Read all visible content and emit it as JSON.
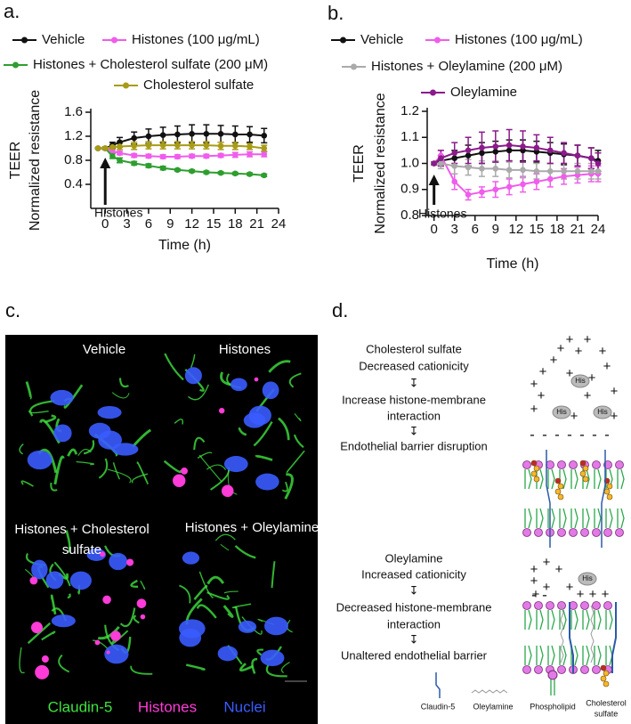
{
  "panel_labels": {
    "a": "a.",
    "b": "b.",
    "c": "c.",
    "d": "d."
  },
  "chart_data": [
    {
      "type": "line",
      "ylabel": [
        "TEER",
        "Normalized resistance"
      ],
      "xlabel": "Time (h)",
      "annotation": "Histones",
      "annotation_x": 0,
      "x": [
        -1,
        0,
        1,
        2,
        4,
        6,
        8,
        10,
        12,
        14,
        16,
        18,
        20,
        22
      ],
      "xlim": [
        -2,
        24
      ],
      "xticks": [
        0,
        3,
        6,
        9,
        12,
        15,
        18,
        21,
        24
      ],
      "ylim": [
        0,
        1.6
      ],
      "yticks": [
        0.4,
        0.8,
        1.2,
        1.6
      ],
      "series": [
        {
          "name": "Vehicle",
          "color": "#111111",
          "values": [
            1.0,
            1.0,
            1.05,
            1.1,
            1.17,
            1.2,
            1.22,
            1.23,
            1.24,
            1.24,
            1.24,
            1.23,
            1.23,
            1.21
          ],
          "errors": [
            0.01,
            0.02,
            0.05,
            0.08,
            0.1,
            0.12,
            0.13,
            0.14,
            0.15,
            0.15,
            0.14,
            0.14,
            0.13,
            0.12
          ]
        },
        {
          "name": "Histones (100 μg/mL)",
          "color": "#f05cec",
          "values": [
            1.0,
            1.0,
            0.95,
            0.92,
            0.88,
            0.87,
            0.86,
            0.86,
            0.87,
            0.87,
            0.88,
            0.89,
            0.9,
            0.9
          ],
          "errors": [
            0.01,
            0.02,
            0.03,
            0.03,
            0.03,
            0.03,
            0.03,
            0.03,
            0.03,
            0.03,
            0.03,
            0.04,
            0.04,
            0.04
          ]
        },
        {
          "name": "Histones + Cholesterol sulfate (200 μM)",
          "color": "#2e9e2e",
          "values": [
            1.0,
            1.0,
            0.87,
            0.8,
            0.75,
            0.71,
            0.67,
            0.64,
            0.62,
            0.6,
            0.59,
            0.58,
            0.57,
            0.55
          ],
          "errors": [
            0.01,
            0.02,
            0.04,
            0.04,
            0.03,
            0.03,
            0.03,
            0.02,
            0.02,
            0.02,
            0.02,
            0.02,
            0.02,
            0.02
          ]
        },
        {
          "name": "Cholesterol sulfate",
          "color": "#a89b16",
          "values": [
            1.0,
            1.0,
            1.02,
            1.03,
            1.04,
            1.05,
            1.05,
            1.05,
            1.05,
            1.05,
            1.04,
            1.04,
            1.03,
            1.0
          ],
          "errors": [
            0.01,
            0.02,
            0.04,
            0.05,
            0.06,
            0.06,
            0.06,
            0.06,
            0.06,
            0.06,
            0.06,
            0.06,
            0.05,
            0.05
          ]
        }
      ]
    },
    {
      "type": "line",
      "ylabel": [
        "TEER",
        "Normalized resistance"
      ],
      "xlabel": "Time (h)",
      "annotation": "Histones",
      "annotation_x": 0,
      "x": [
        0,
        1,
        3,
        5,
        7,
        9,
        11,
        13,
        15,
        17,
        19,
        21,
        23,
        24
      ],
      "xlim": [
        -1,
        24
      ],
      "xticks": [
        0,
        3,
        6,
        9,
        12,
        15,
        18,
        21,
        24
      ],
      "ylim": [
        0.8,
        1.2
      ],
      "yticks": [
        0.8,
        0.9,
        {
          "value": 1,
          "label": "1.0"
        },
        1.1,
        1.2
      ],
      "series": [
        {
          "name": "Vehicle",
          "color": "#111111",
          "values": [
            1.0,
            1.01,
            1.02,
            1.03,
            1.04,
            1.045,
            1.05,
            1.05,
            1.045,
            1.04,
            1.035,
            1.03,
            1.02,
            1.01
          ],
          "errors": [
            0.005,
            0.02,
            0.03,
            0.04,
            0.04,
            0.04,
            0.04,
            0.04,
            0.04,
            0.04,
            0.04,
            0.04,
            0.04,
            0.04
          ]
        },
        {
          "name": "Histones (100 μg/mL)",
          "color": "#f05cec",
          "values": [
            1.0,
            1.03,
            0.93,
            0.88,
            0.89,
            0.9,
            0.91,
            0.92,
            0.93,
            0.94,
            0.95,
            0.955,
            0.96,
            0.96
          ],
          "errors": [
            0.005,
            0.02,
            0.03,
            0.02,
            0.02,
            0.03,
            0.03,
            0.03,
            0.03,
            0.03,
            0.03,
            0.03,
            0.03,
            0.03
          ]
        },
        {
          "name": "Histones + Oleylamine (200 μM)",
          "color": "#aaaaaa",
          "values": [
            1.0,
            1.0,
            0.99,
            0.985,
            0.98,
            0.98,
            0.975,
            0.975,
            0.97,
            0.97,
            0.97,
            0.97,
            0.97,
            0.97
          ],
          "errors": [
            0.005,
            0.02,
            0.03,
            0.03,
            0.03,
            0.03,
            0.03,
            0.03,
            0.03,
            0.03,
            0.03,
            0.03,
            0.03,
            0.03
          ]
        },
        {
          "name": "Oleylamine",
          "color": "#8b1a8b",
          "values": [
            1.0,
            1.02,
            1.04,
            1.05,
            1.06,
            1.065,
            1.07,
            1.065,
            1.06,
            1.05,
            1.04,
            1.03,
            1.02,
            1.0
          ],
          "errors": [
            0.005,
            0.03,
            0.04,
            0.05,
            0.06,
            0.06,
            0.06,
            0.06,
            0.05,
            0.05,
            0.04,
            0.04,
            0.04,
            0.04
          ]
        }
      ]
    }
  ],
  "microscopy": {
    "panels": [
      {
        "label": [
          "Vehicle"
        ]
      },
      {
        "label": [
          "Histones"
        ]
      },
      {
        "label": [
          "Histones + Cholesterol",
          "sulfate"
        ]
      },
      {
        "label": [
          "Histones + Oleylamine"
        ]
      }
    ],
    "channels": [
      {
        "name": "Claudin-5",
        "color": "#3ee23e"
      },
      {
        "name": "Histones",
        "color": "#ff3bd8"
      },
      {
        "name": "Nuclei",
        "color": "#3a5cff"
      }
    ]
  },
  "mechanism": {
    "flows": [
      {
        "lines": [
          "Cholesterol sulfate",
          "Decreased cationicity",
          "Increase histone-membrane",
          "interaction",
          "Endothelial barrier disruption"
        ]
      },
      {
        "lines": [
          "Oleylamine",
          "Increased cationicity",
          "Decreased histone-membrane",
          "interaction",
          "Unaltered endothelial barrier"
        ]
      }
    ],
    "flow_arrow": "↧",
    "his_label": "His",
    "charge_signs": {
      "positive": "+",
      "negative": "-"
    },
    "legend": [
      {
        "name": [
          "Claudin-5"
        ]
      },
      {
        "name": [
          "Oleylamine"
        ]
      },
      {
        "name": [
          "Phospholipid"
        ]
      },
      {
        "name": [
          "Cholesterol",
          "sulfate"
        ]
      }
    ]
  }
}
